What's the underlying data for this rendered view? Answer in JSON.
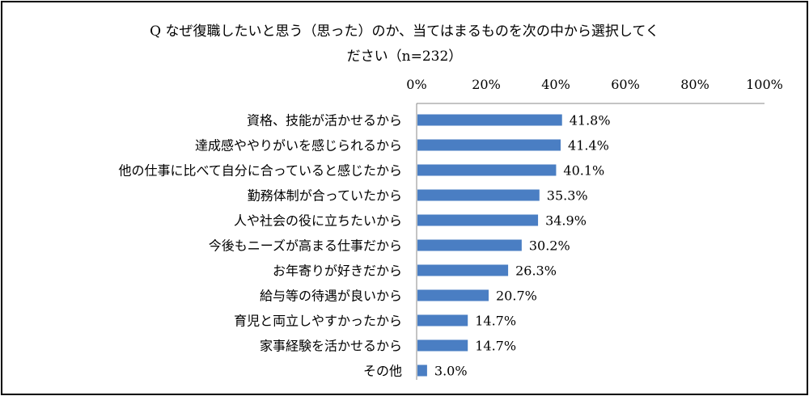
{
  "title_line1": "Q なぜ復職したいと思う（思った）のか、当てはまるものを次の中から選択してく",
  "title_line2": "ださい（n=232）",
  "chart_data": {
    "type": "bar",
    "orientation": "horizontal",
    "xlim": [
      0,
      100
    ],
    "x_tick_labels": [
      "0%",
      "20%",
      "40%",
      "60%",
      "80%",
      "100%"
    ],
    "x_axis_position": "top",
    "bar_color": "#4a7ec3",
    "grid": false,
    "categories": [
      "資格、技能が活かせるから",
      "達成感ややりがいを感じられるから",
      "他の仕事に比べて自分に合っていると感じたから",
      "勤務体制が合っていたから",
      "人や社会の役に立ちたいから",
      "今後もニーズが高まる仕事だから",
      "お年寄りが好きだから",
      "給与等の待遇が良いから",
      "育児と両立しやすかったから",
      "家事経験を活かせるから",
      "その他"
    ],
    "values": [
      41.8,
      41.4,
      40.1,
      35.3,
      34.9,
      30.2,
      26.3,
      20.7,
      14.7,
      14.7,
      3.0
    ],
    "value_labels": [
      "41.8%",
      "41.4%",
      "40.1%",
      "35.3%",
      "34.9%",
      "30.2%",
      "26.3%",
      "20.7%",
      "14.7%",
      "14.7%",
      "3.0%"
    ]
  }
}
